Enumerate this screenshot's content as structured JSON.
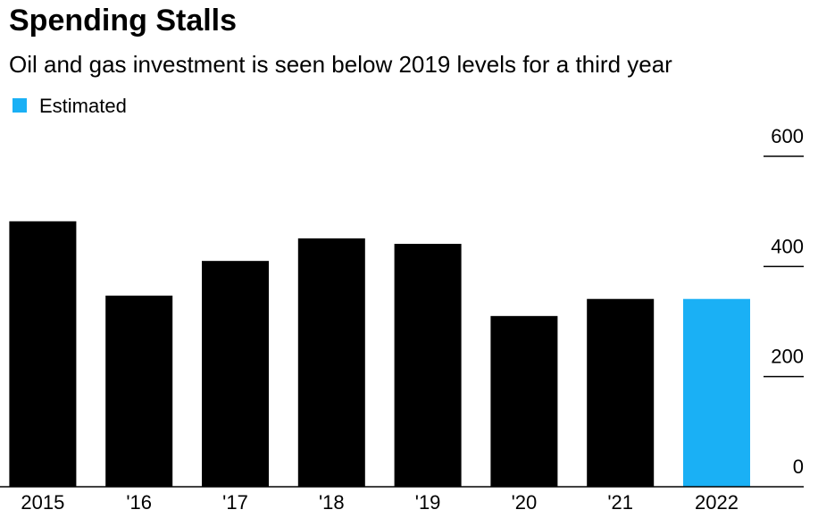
{
  "chart_data": {
    "type": "bar",
    "title": "Spending Stalls",
    "subtitle": "Oil and gas investment is seen below 2019 levels for a third year",
    "categories": [
      "2015",
      "'16",
      "'17",
      "'18",
      "'19",
      "'20",
      "'21",
      "2022"
    ],
    "values": [
      482,
      347,
      410,
      451,
      441,
      310,
      341,
      341
    ],
    "colors": [
      "#000000",
      "#000000",
      "#000000",
      "#000000",
      "#000000",
      "#000000",
      "#000000",
      "#1ab0f5"
    ],
    "legend": [
      {
        "label": "Estimated",
        "color": "#1ab0f5"
      }
    ],
    "ylim": [
      0,
      600
    ],
    "yticks": [
      0,
      200,
      400,
      600
    ],
    "y_axis_side": "right"
  }
}
